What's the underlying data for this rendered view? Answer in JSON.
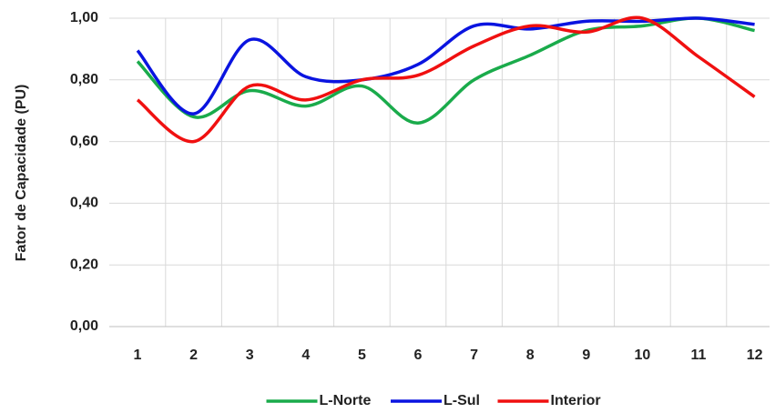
{
  "chart_data": {
    "type": "line",
    "y_label": "Fator de Capacidade (PU)",
    "categories": [
      "1",
      "2",
      "3",
      "4",
      "5",
      "6",
      "7",
      "8",
      "9",
      "10",
      "11",
      "12"
    ],
    "series": [
      {
        "name": "L-Norte",
        "color": "#1aab4b",
        "values": [
          0.86,
          0.68,
          0.765,
          0.715,
          0.78,
          0.66,
          0.8,
          0.88,
          0.96,
          0.975,
          1.0,
          0.96
        ]
      },
      {
        "name": "L-Sul",
        "color": "#0a14e0",
        "values": [
          0.895,
          0.69,
          0.93,
          0.81,
          0.8,
          0.85,
          0.975,
          0.965,
          0.99,
          0.99,
          1.0,
          0.98
        ]
      },
      {
        "name": "Interior",
        "color": "#f01010",
        "values": [
          0.735,
          0.6,
          0.78,
          0.735,
          0.8,
          0.815,
          0.91,
          0.975,
          0.955,
          1.0,
          0.875,
          0.745
        ]
      }
    ],
    "ylim": [
      0,
      1
    ],
    "yticks": [
      {
        "value": 0,
        "label": "0,00"
      },
      {
        "value": 0.2,
        "label": "0,20"
      },
      {
        "value": 0.4,
        "label": "0,40"
      },
      {
        "value": 0.6,
        "label": "0,60"
      },
      {
        "value": 0.8,
        "label": "0,80"
      },
      {
        "value": 1,
        "label": "1,00"
      }
    ],
    "grid": true,
    "legend": "bottom"
  }
}
